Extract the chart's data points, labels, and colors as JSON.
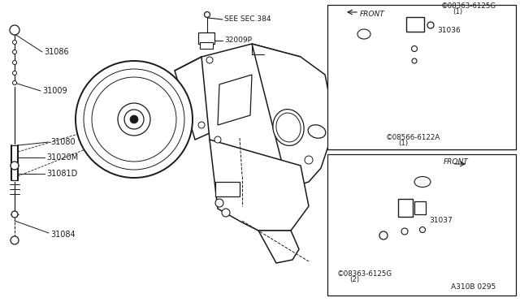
{
  "bg": "#ffffff",
  "lc": "#1a1a1a",
  "tc": "#1a1a1a",
  "fw": 6.4,
  "fh": 3.72,
  "dpi": 100,
  "parts": {
    "31086": "31086",
    "31009": "31009",
    "31080": "31080",
    "31020M": "31020M",
    "31081D": "31081D",
    "31084": "31084",
    "32009P": "32009P",
    "31036": "31036",
    "31037": "31037",
    "see_sec": "SEE SEC.384",
    "s08363_1": "©08363-6125G",
    "s08363_1b": "(1)",
    "s08566_1": "©08566-6122A",
    "s08566_1b": "(1)",
    "s08363_2": "©08363-6125G",
    "s08363_2b": "(2)",
    "code": "A310B 0295",
    "front": "FRONT"
  }
}
